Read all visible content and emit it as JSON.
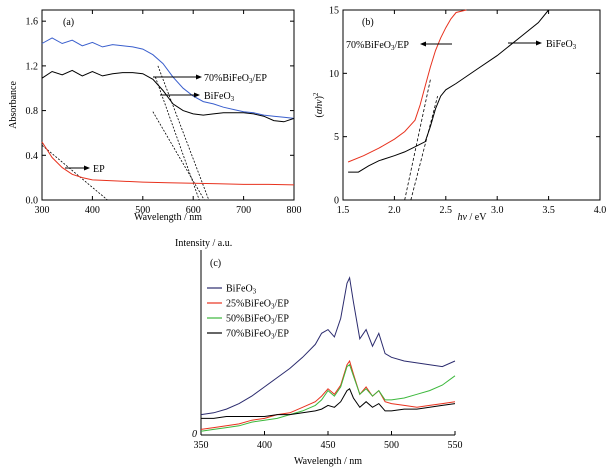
{
  "chart_data": [
    {
      "panel": "(a)",
      "type": "line",
      "xlabel": "Wavelength / nm",
      "ylabel": "Absorbance",
      "xlim": [
        300,
        800
      ],
      "ylim": [
        0.0,
        1.7
      ],
      "xticks": [
        "300",
        "400",
        "500",
        "600",
        "700",
        "800"
      ],
      "yticks": [
        "0.0",
        "0.4",
        "0.8",
        "1.2",
        "1.6"
      ],
      "series": [
        {
          "name": "70%BiFeO3/EP",
          "color": "#3a5fcd",
          "x": [
            300,
            320,
            340,
            360,
            380,
            400,
            420,
            440,
            460,
            480,
            500,
            520,
            540,
            560,
            580,
            600,
            620,
            640,
            660,
            680,
            700,
            720,
            740,
            760,
            780,
            800
          ],
          "y": [
            1.42,
            1.43,
            1.42,
            1.41,
            1.4,
            1.39,
            1.39,
            1.39,
            1.38,
            1.37,
            1.35,
            1.3,
            1.22,
            1.1,
            1.0,
            0.93,
            0.88,
            0.86,
            0.83,
            0.81,
            0.79,
            0.78,
            0.76,
            0.75,
            0.74,
            0.73
          ]
        },
        {
          "name": "BiFeO3",
          "color": "#000000",
          "x": [
            300,
            320,
            340,
            360,
            380,
            400,
            420,
            440,
            460,
            480,
            500,
            520,
            540,
            560,
            580,
            600,
            620,
            640,
            660,
            680,
            700,
            720,
            740,
            760,
            780,
            800
          ],
          "y": [
            1.11,
            1.13,
            1.14,
            1.14,
            1.13,
            1.13,
            1.13,
            1.13,
            1.14,
            1.14,
            1.13,
            1.08,
            0.98,
            0.86,
            0.8,
            0.77,
            0.76,
            0.77,
            0.78,
            0.78,
            0.78,
            0.77,
            0.75,
            0.71,
            0.7,
            0.73
          ]
        },
        {
          "name": "EP",
          "color": "#e8321e",
          "x": [
            300,
            320,
            340,
            360,
            380,
            400,
            450,
            500,
            550,
            600,
            650,
            700,
            750,
            800
          ],
          "y": [
            0.52,
            0.38,
            0.29,
            0.23,
            0.2,
            0.18,
            0.17,
            0.16,
            0.155,
            0.15,
            0.145,
            0.14,
            0.14,
            0.135
          ]
        }
      ],
      "tangents": [
        {
          "x1": 530,
          "y1": 1.2,
          "x2": 631,
          "y2": 0.0
        },
        {
          "x1": 525,
          "y1": 1.1,
          "x2": 612,
          "y2": 0.0
        },
        {
          "x1": 520,
          "y1": 0.79,
          "x2": 622,
          "y2": 0.0
        },
        {
          "x1": 300,
          "y1": 0.49,
          "x2": 430,
          "y2": 0.0
        }
      ],
      "annotations": [
        "(a)",
        "70%BiFeO3/EP",
        "BiFeO3",
        "EP"
      ]
    },
    {
      "panel": "(b)",
      "type": "line",
      "xlabel": "hν / eV",
      "ylabel": "(αhν)²",
      "xlim": [
        1.5,
        4.0
      ],
      "ylim": [
        0,
        15
      ],
      "xticks": [
        "1.5",
        "2.0",
        "2.5",
        "3.0",
        "3.5",
        "4.0"
      ],
      "yticks": [
        "0",
        "5",
        "10",
        "15"
      ],
      "series": [
        {
          "name": "70%BiFeO3/EP",
          "color": "#e8321e",
          "x": [
            1.55,
            1.7,
            1.85,
            2.0,
            2.1,
            2.2,
            2.25,
            2.3,
            2.35,
            2.4,
            2.45,
            2.5,
            2.55,
            2.6,
            2.7
          ],
          "y": [
            3.0,
            3.5,
            4.1,
            4.8,
            5.4,
            6.3,
            7.5,
            9.0,
            10.5,
            11.8,
            12.8,
            13.6,
            14.3,
            14.8,
            15.0
          ]
        },
        {
          "name": "BiFeO3",
          "color": "#000000",
          "x": [
            1.55,
            1.65,
            1.75,
            1.85,
            2.0,
            2.1,
            2.2,
            2.3,
            2.35,
            2.4,
            2.45,
            2.5,
            2.6,
            2.8,
            3.0,
            3.2,
            3.4,
            3.5
          ],
          "y": [
            2.2,
            2.2,
            2.7,
            3.1,
            3.5,
            3.8,
            4.2,
            4.6,
            5.8,
            7.2,
            8.2,
            8.7,
            9.2,
            10.3,
            11.4,
            12.7,
            14.0,
            15.0
          ]
        }
      ],
      "tangents": [
        {
          "x1": 2.1,
          "y1": 0.0,
          "x2": 2.35,
          "y2": 9.5
        },
        {
          "x1": 2.16,
          "y1": 0.0,
          "x2": 2.42,
          "y2": 8.2
        }
      ],
      "annotations": [
        "(b)",
        "70%BiFeO3/EP",
        "BiFeO3"
      ]
    },
    {
      "panel": "(c)",
      "type": "line",
      "xlabel": "Wavelength / nm",
      "ylabel": "Intensity / a.u.",
      "xlim": [
        350,
        550
      ],
      "xticks": [
        "350",
        "400",
        "450",
        "500",
        "550"
      ],
      "yticks": [
        "0"
      ],
      "legend": "top-left",
      "series": [
        {
          "name": "BiFeO3",
          "color": "#2b2b6e",
          "x": [
            350,
            360,
            370,
            380,
            390,
            400,
            410,
            420,
            430,
            440,
            445,
            450,
            455,
            460,
            465,
            467,
            470,
            475,
            480,
            485,
            490,
            495,
            500,
            510,
            520,
            530,
            540,
            550
          ],
          "y": [
            0.11,
            0.12,
            0.14,
            0.17,
            0.21,
            0.26,
            0.31,
            0.36,
            0.42,
            0.49,
            0.55,
            0.57,
            0.53,
            0.63,
            0.82,
            0.85,
            0.72,
            0.52,
            0.57,
            0.48,
            0.55,
            0.44,
            0.42,
            0.4,
            0.39,
            0.38,
            0.37,
            0.4
          ]
        },
        {
          "name": "25%BiFeO3/EP",
          "color": "#e8321e",
          "x": [
            350,
            360,
            370,
            380,
            390,
            400,
            410,
            420,
            430,
            440,
            445,
            450,
            455,
            460,
            465,
            467,
            470,
            475,
            480,
            485,
            490,
            495,
            500,
            510,
            520,
            530,
            540,
            550
          ],
          "y": [
            0.03,
            0.04,
            0.05,
            0.06,
            0.08,
            0.09,
            0.11,
            0.12,
            0.15,
            0.18,
            0.21,
            0.25,
            0.22,
            0.27,
            0.38,
            0.4,
            0.33,
            0.22,
            0.26,
            0.21,
            0.24,
            0.18,
            0.17,
            0.16,
            0.15,
            0.16,
            0.17,
            0.18
          ]
        },
        {
          "name": "50%BiFeO3/EP",
          "color": "#3cb83c",
          "x": [
            350,
            360,
            370,
            380,
            390,
            400,
            410,
            420,
            430,
            440,
            445,
            450,
            455,
            460,
            465,
            467,
            470,
            475,
            480,
            485,
            490,
            495,
            500,
            510,
            520,
            530,
            540,
            550
          ],
          "y": [
            0.02,
            0.03,
            0.04,
            0.05,
            0.07,
            0.08,
            0.09,
            0.11,
            0.13,
            0.16,
            0.19,
            0.24,
            0.21,
            0.26,
            0.37,
            0.38,
            0.32,
            0.22,
            0.25,
            0.21,
            0.24,
            0.19,
            0.19,
            0.2,
            0.22,
            0.24,
            0.27,
            0.32
          ]
        },
        {
          "name": "70%BiFeO3/EP",
          "color": "#000000",
          "x": [
            350,
            360,
            370,
            380,
            390,
            400,
            410,
            420,
            430,
            440,
            445,
            450,
            455,
            460,
            465,
            467,
            470,
            475,
            480,
            485,
            490,
            495,
            500,
            510,
            520,
            530,
            540,
            550
          ],
          "y": [
            0.09,
            0.09,
            0.1,
            0.1,
            0.1,
            0.1,
            0.11,
            0.11,
            0.12,
            0.13,
            0.14,
            0.16,
            0.15,
            0.18,
            0.24,
            0.25,
            0.2,
            0.15,
            0.18,
            0.15,
            0.17,
            0.13,
            0.13,
            0.14,
            0.14,
            0.15,
            0.16,
            0.17
          ]
        }
      ],
      "annotations": [
        "(c)"
      ]
    }
  ]
}
